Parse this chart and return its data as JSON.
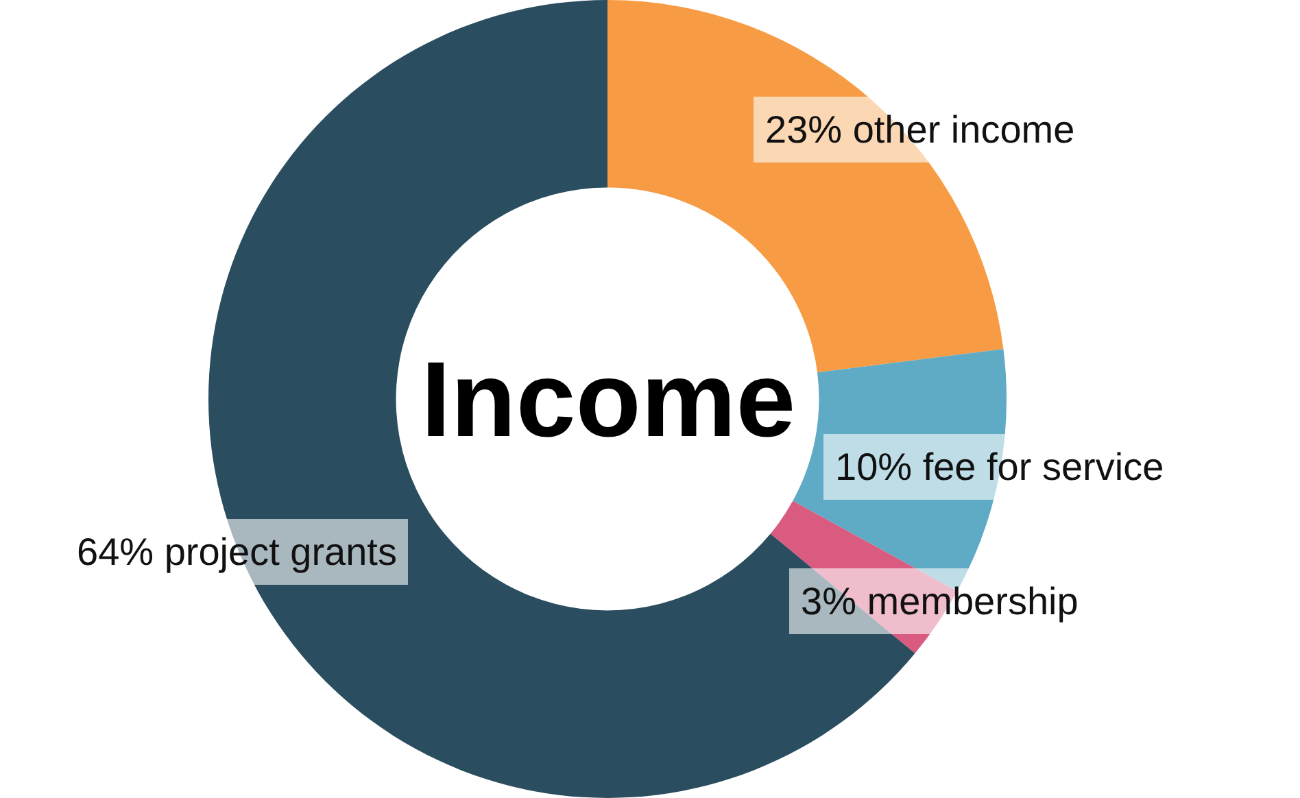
{
  "chart_data": {
    "type": "donut",
    "title": "Income",
    "categories": [
      "other income",
      "fee for service",
      "membership",
      "project grants"
    ],
    "values": [
      23,
      10,
      3,
      64
    ],
    "value_labels": [
      "23%",
      "10%",
      "3%",
      "64%"
    ],
    "colors": [
      "#f79c45",
      "#5faac4",
      "#d95b80",
      "#2a4d5f"
    ],
    "legend": false
  }
}
